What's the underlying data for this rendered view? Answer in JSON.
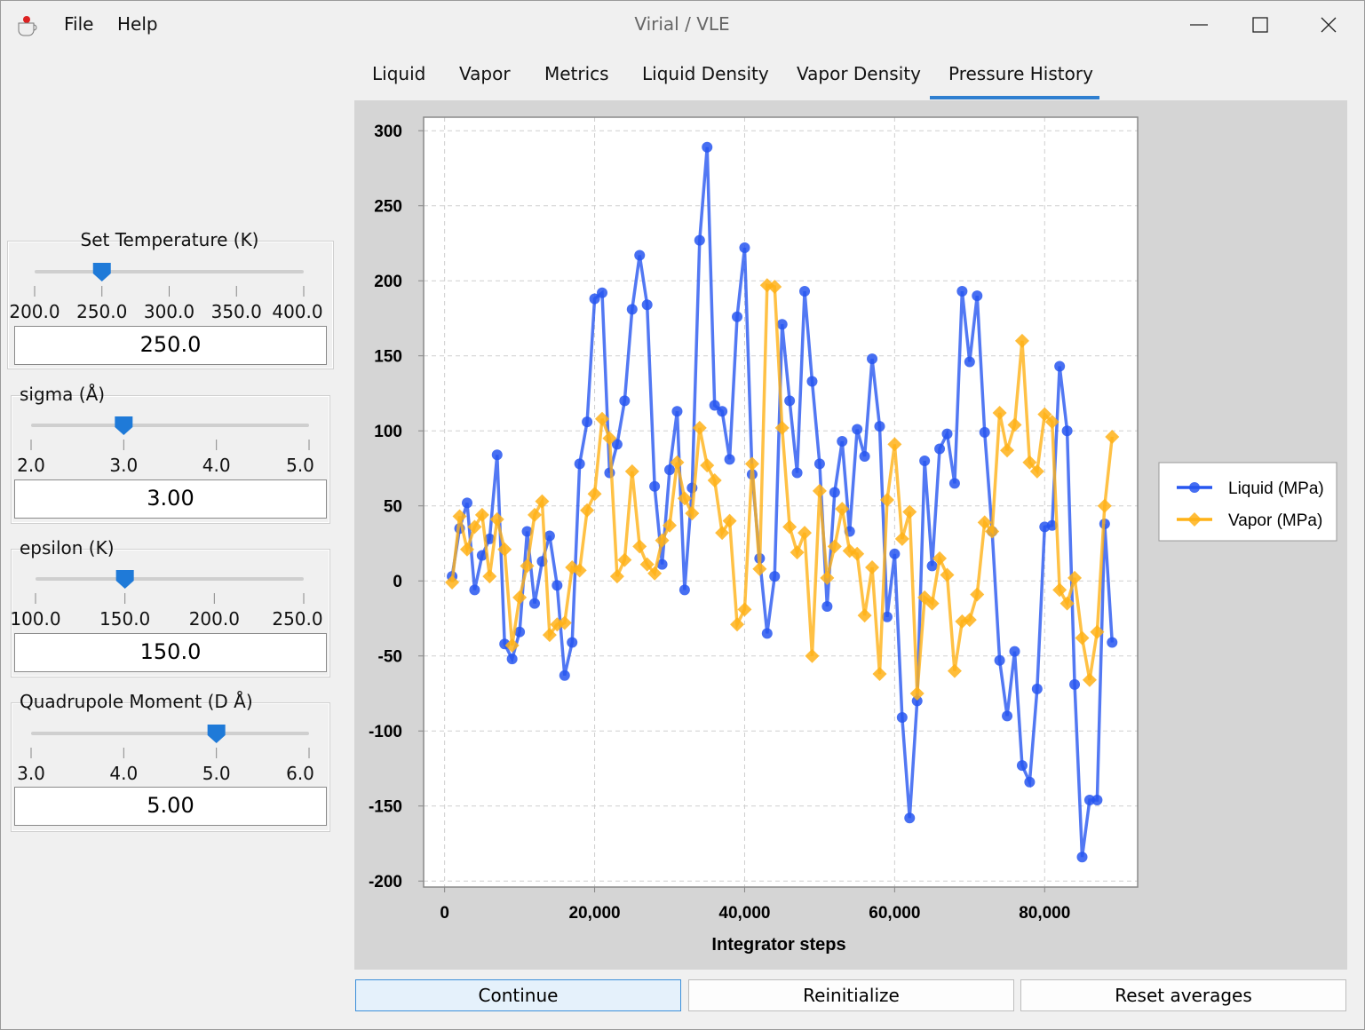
{
  "window": {
    "title": "Virial / VLE",
    "menu": [
      "File",
      "Help"
    ]
  },
  "tabs": {
    "items": [
      "Liquid",
      "Vapor",
      "Metrics",
      "Liquid Density",
      "Vapor Density",
      "Pressure History"
    ],
    "active": 5
  },
  "controls": [
    {
      "label": "Set Temperature (K)",
      "ticks": [
        "200.0",
        "250.0",
        "300.0",
        "350.0",
        "400.0"
      ],
      "value": "250.0"
    },
    {
      "label": "sigma (Å)",
      "ticks": [
        "2.0",
        "3.0",
        "4.0",
        "5.0"
      ],
      "value": "3.00"
    },
    {
      "label": "epsilon (K)",
      "ticks": [
        "100.0",
        "150.0",
        "200.0",
        "250.0"
      ],
      "value": "150.0"
    },
    {
      "label": "Quadrupole Moment (D Å)",
      "ticks": [
        "3.0",
        "4.0",
        "5.0",
        "6.0"
      ],
      "value": "5.00"
    }
  ],
  "buttons": [
    "Continue",
    "Reinitialize",
    "Reset averages"
  ],
  "chart_data": {
    "type": "line",
    "x_label": "Integrator steps",
    "x": [
      1000,
      2000,
      3000,
      4000,
      5000,
      6000,
      7000,
      8000,
      9000,
      10000,
      11000,
      12000,
      13000,
      14000,
      15000,
      16000,
      17000,
      18000,
      19000,
      20000,
      21000,
      22000,
      23000,
      24000,
      25000,
      26000,
      27000,
      28000,
      29000,
      30000,
      31000,
      32000,
      33000,
      34000,
      35000,
      36000,
      37000,
      38000,
      39000,
      40000,
      41000,
      42000,
      43000,
      44000,
      45000,
      46000,
      47000,
      48000,
      49000,
      50000,
      51000,
      52000,
      53000,
      54000,
      55000,
      56000,
      57000,
      58000,
      59000,
      60000,
      61000,
      62000,
      63000,
      64000,
      65000,
      66000,
      67000,
      68000,
      69000,
      70000,
      71000,
      72000,
      73000,
      74000,
      75000,
      76000,
      77000,
      78000,
      79000,
      80000,
      81000,
      82000,
      83000,
      84000,
      85000,
      86000,
      87000,
      88000,
      89000
    ],
    "series": [
      {
        "name": "Liquid (MPa)",
        "color": "#2756f0",
        "marker": "circle",
        "values": [
          3,
          35,
          52,
          -6,
          17,
          28,
          84,
          -42,
          -52,
          -34,
          33,
          -15,
          13,
          30,
          -3,
          -63,
          -41,
          78,
          106,
          188,
          192,
          72,
          91,
          120,
          181,
          217,
          184,
          63,
          11,
          74,
          113,
          -6,
          62,
          227,
          289,
          117,
          113,
          81,
          176,
          222,
          71,
          15,
          -35,
          3,
          171,
          120,
          72,
          193,
          133,
          78,
          -17,
          59,
          93,
          33,
          101,
          83,
          148,
          103,
          -24,
          18,
          -91,
          -158,
          -80,
          80,
          10,
          88,
          98,
          65,
          193,
          146,
          190,
          99,
          33,
          -53,
          -90,
          -47,
          -123,
          -134,
          -72,
          36,
          37,
          143,
          100,
          -69,
          -184,
          -146,
          -146,
          38,
          -41
        ]
      },
      {
        "name": "Vapor (MPa)",
        "color": "#ffb217",
        "marker": "diamond",
        "values": [
          -1,
          43,
          21,
          36,
          44,
          3,
          41,
          21,
          -43,
          -11,
          10,
          44,
          53,
          -36,
          -29,
          -28,
          9,
          7,
          47,
          58,
          108,
          95,
          3,
          14,
          73,
          23,
          11,
          5,
          27,
          37,
          79,
          55,
          45,
          102,
          77,
          67,
          32,
          40,
          -29,
          -19,
          78,
          8,
          197,
          196,
          102,
          36,
          19,
          32,
          -50,
          60,
          2,
          23,
          48,
          20,
          18,
          -23,
          9,
          -62,
          54,
          91,
          28,
          46,
          -75,
          -11,
          -15,
          15,
          4,
          -60,
          -27,
          -26,
          -9,
          39,
          33,
          112,
          87,
          104,
          160,
          79,
          73,
          111,
          106,
          -6,
          -15,
          2,
          -38,
          -66,
          -34,
          50,
          96
        ]
      }
    ],
    "xlim": [
      -2800,
      92400
    ],
    "ylim": [
      -204,
      309
    ],
    "xticks": [
      0,
      {
        "value": 20000,
        "label": "20,000"
      },
      {
        "value": 40000,
        "label": "40,000"
      },
      {
        "value": 60000,
        "label": "60,000"
      },
      {
        "value": 80000,
        "label": "80,000"
      }
    ],
    "yticks": [
      300,
      250,
      200,
      150,
      100,
      50,
      0,
      -50,
      -100,
      -150,
      -200
    ],
    "grid": true,
    "legend": "right"
  }
}
